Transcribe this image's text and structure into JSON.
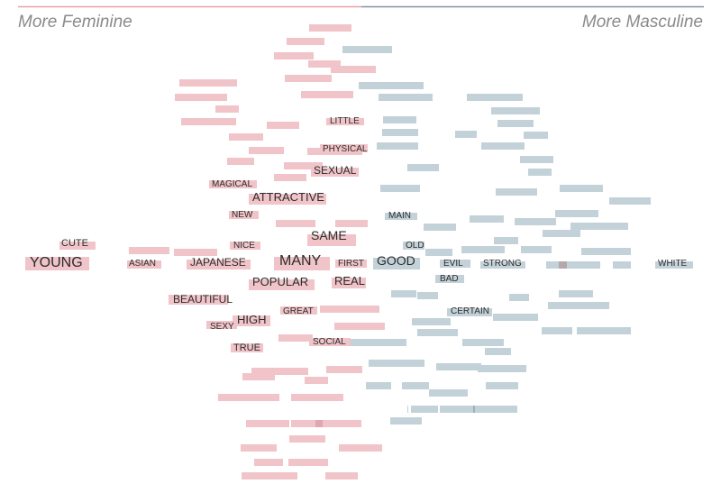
{
  "chart_data": {
    "type": "scatter",
    "axis": {
      "left_label": "More Feminine",
      "right_label": "More Masculine",
      "left_color": "#e8a2a8",
      "right_color": "#7f96a8"
    },
    "colors": {
      "feminine": "#f0c4c8",
      "masculine": "#c3d2d8",
      "overlap": "#b5a7ac"
    },
    "labeled_words": [
      {
        "word": "CUTE",
        "side": "feminine",
        "weight": 2
      },
      {
        "word": "YOUNG",
        "side": "feminine",
        "weight": 5
      },
      {
        "word": "ASIAN",
        "side": "feminine",
        "weight": 1
      },
      {
        "word": "JAPANESE",
        "side": "feminine",
        "weight": 2
      },
      {
        "word": "NICE",
        "side": "feminine",
        "weight": 1
      },
      {
        "word": "MANY",
        "side": "feminine",
        "weight": 5
      },
      {
        "word": "SAME",
        "side": "feminine",
        "weight": 3
      },
      {
        "word": "FIRST",
        "side": "feminine",
        "weight": 1
      },
      {
        "word": "GOOD",
        "side": "masculine",
        "weight": 4
      },
      {
        "word": "OLD",
        "side": "masculine",
        "weight": 1
      },
      {
        "word": "EVIL",
        "side": "masculine",
        "weight": 1
      },
      {
        "word": "STRONG",
        "side": "masculine",
        "weight": 1
      },
      {
        "word": "WHITE",
        "side": "masculine",
        "weight": 1
      },
      {
        "word": "BAD",
        "side": "masculine",
        "weight": 1
      },
      {
        "word": "CERTAIN",
        "side": "masculine",
        "weight": 1
      },
      {
        "word": "MAIN",
        "side": "masculine",
        "weight": 1
      },
      {
        "word": "LITTLE",
        "side": "feminine",
        "weight": 1
      },
      {
        "word": "PHYSICAL",
        "side": "feminine",
        "weight": 1
      },
      {
        "word": "SEXUAL",
        "side": "feminine",
        "weight": 2
      },
      {
        "word": "MAGICAL",
        "side": "feminine",
        "weight": 1
      },
      {
        "word": "ATTRACTIVE",
        "side": "feminine",
        "weight": 3
      },
      {
        "word": "NEW",
        "side": "feminine",
        "weight": 1
      },
      {
        "word": "POPULAR",
        "side": "feminine",
        "weight": 3
      },
      {
        "word": "REAL",
        "side": "feminine",
        "weight": 2
      },
      {
        "word": "BEAUTIFUL",
        "side": "feminine",
        "weight": 2
      },
      {
        "word": "GREAT",
        "side": "feminine",
        "weight": 1
      },
      {
        "word": "SEXY",
        "side": "feminine",
        "weight": 1
      },
      {
        "word": "HIGH",
        "side": "feminine",
        "weight": 3
      },
      {
        "word": "TRUE",
        "side": "feminine",
        "weight": 1
      },
      {
        "word": "SOCIAL",
        "side": "feminine",
        "weight": 1
      }
    ]
  }
}
